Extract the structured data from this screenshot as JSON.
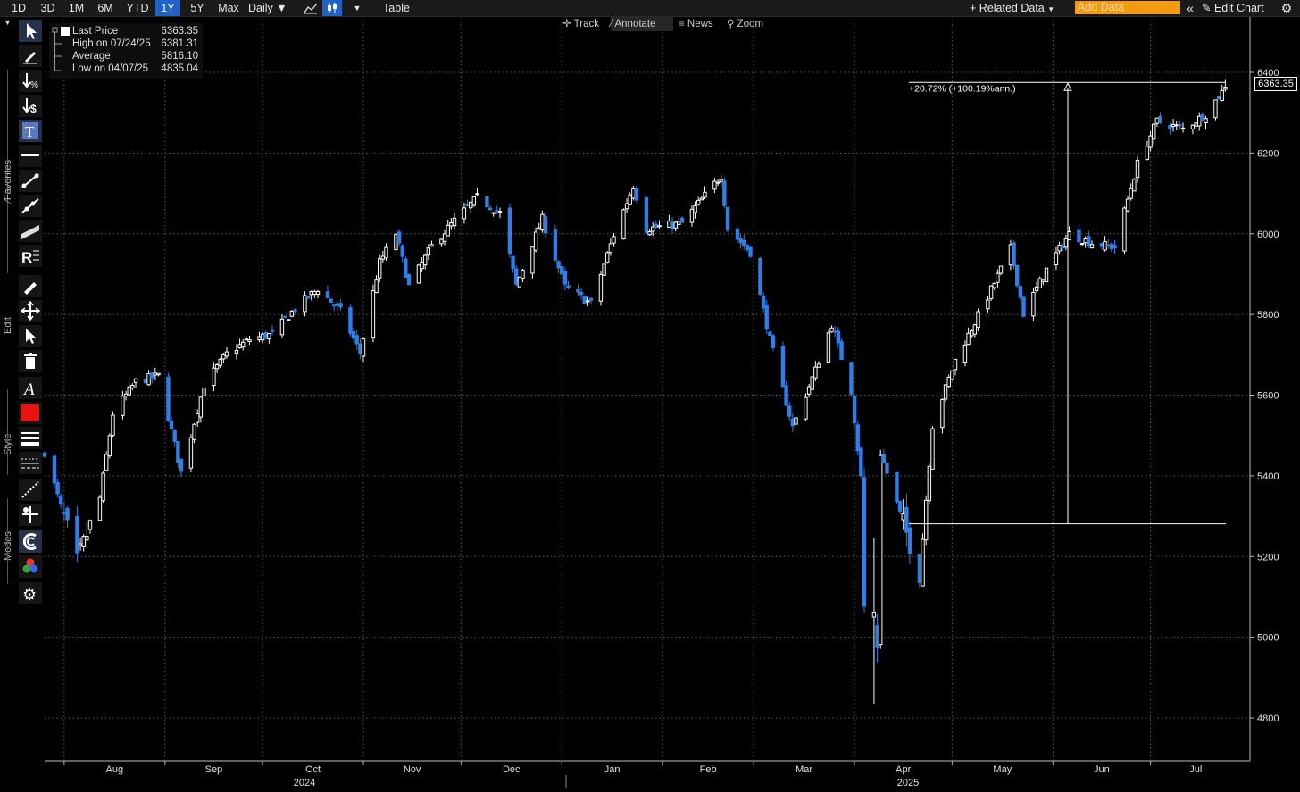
{
  "toolbar": {
    "ranges": [
      "1D",
      "3D",
      "1M",
      "6M",
      "YTD",
      "1Y",
      "5Y",
      "Max"
    ],
    "active_range": "1Y",
    "interval": "Daily",
    "table_label": "Table",
    "related_data": "Related Data",
    "add_data_placeholder": "Add Data",
    "edit_chart": "Edit Chart"
  },
  "mode_bar": {
    "track": "Track",
    "annotate": "Annotate",
    "news": "News",
    "zoom": "Zoom"
  },
  "side_toolbar": {
    "favorites": "Favorites",
    "edit": "Edit",
    "style": "Style",
    "modes": "Modes",
    "accent_color": "#e8130f"
  },
  "legend": {
    "last_label": "Last Price",
    "last_value": "6363.35",
    "high_label": "High on 07/24/25",
    "high_value": "6381.31",
    "avg_label": "Average",
    "avg_value": "5816.10",
    "low_label": "Low on 04/07/25",
    "low_value": "4835.04"
  },
  "colors": {
    "up": "#ffffff",
    "down": "#2f7fe8",
    "grid": "#5a5a5a",
    "annotation": "#ffffff"
  },
  "chart_data": {
    "type": "candlestick",
    "title": "",
    "y_range": [
      4700,
      6440
    ],
    "y_ticks": [
      4800,
      5000,
      5200,
      5400,
      5600,
      5800,
      6000,
      6200,
      6400
    ],
    "months": [
      "Aug",
      "Sep",
      "Oct",
      "Nov",
      "Dec",
      "Jan",
      "Feb",
      "Mar",
      "Apr",
      "May",
      "Jun",
      "Jul"
    ],
    "years": [
      "2024",
      "2025"
    ],
    "last_price": 6363.35,
    "high": 6381.31,
    "average": 5816.1,
    "low": 4835.04,
    "x_domain": [
      "2024-07-26",
      "2025-07-25"
    ],
    "anchor_closes": [
      [
        "2024-07-26",
        5459
      ],
      [
        "2024-08-05",
        5186
      ],
      [
        "2024-08-12",
        5345
      ],
      [
        "2024-08-16",
        5554
      ],
      [
        "2024-08-23",
        5634
      ],
      [
        "2024-08-30",
        5648
      ],
      [
        "2024-09-06",
        5408
      ],
      [
        "2024-09-13",
        5626
      ],
      [
        "2024-09-20",
        5702
      ],
      [
        "2024-09-27",
        5738
      ],
      [
        "2024-10-04",
        5751
      ],
      [
        "2024-10-11",
        5815
      ],
      [
        "2024-10-18",
        5864
      ],
      [
        "2024-10-25",
        5808
      ],
      [
        "2024-10-31",
        5705
      ],
      [
        "2024-11-06",
        5929
      ],
      [
        "2024-11-11",
        6001
      ],
      [
        "2024-11-15",
        5870
      ],
      [
        "2024-11-22",
        5969
      ],
      [
        "2024-11-29",
        6032
      ],
      [
        "2024-12-06",
        6090
      ],
      [
        "2024-12-13",
        6051
      ],
      [
        "2024-12-18",
        5872
      ],
      [
        "2024-12-26",
        6037
      ],
      [
        "2025-01-02",
        5868
      ],
      [
        "2025-01-10",
        5827
      ],
      [
        "2025-01-17",
        5997
      ],
      [
        "2025-01-23",
        6119
      ],
      [
        "2025-01-27",
        6012
      ],
      [
        "2025-02-07",
        6026
      ],
      [
        "2025-02-19",
        6144
      ],
      [
        "2025-02-21",
        6013
      ],
      [
        "2025-02-28",
        5954
      ],
      [
        "2025-03-06",
        5738
      ],
      [
        "2025-03-13",
        5521
      ],
      [
        "2025-03-20",
        5662
      ],
      [
        "2025-03-25",
        5776
      ],
      [
        "2025-03-31",
        5611
      ],
      [
        "2025-04-03",
        5396
      ],
      [
        "2025-04-04",
        5074
      ],
      [
        "2025-04-08",
        4982
      ],
      [
        "2025-04-09",
        5456
      ],
      [
        "2025-04-21",
        5158
      ],
      [
        "2025-04-25",
        5525
      ],
      [
        "2025-05-02",
        5686
      ],
      [
        "2025-05-12",
        5844
      ],
      [
        "2025-05-19",
        5963
      ],
      [
        "2025-05-23",
        5802
      ],
      [
        "2025-05-30",
        5911
      ],
      [
        "2025-06-06",
        6000
      ],
      [
        "2025-06-13",
        5977
      ],
      [
        "2025-06-20",
        5967
      ],
      [
        "2025-06-27",
        6173
      ],
      [
        "2025-07-03",
        6279
      ],
      [
        "2025-07-11",
        6260
      ],
      [
        "2025-07-18",
        6296
      ],
      [
        "2025-07-24",
        6363
      ]
    ],
    "annotation": {
      "label": "+20.72% (+100.19%ann.)",
      "from_date": "2025-04-21",
      "from_value": 5281,
      "to_date": "2025-07-24",
      "to_value": 6375
    }
  }
}
